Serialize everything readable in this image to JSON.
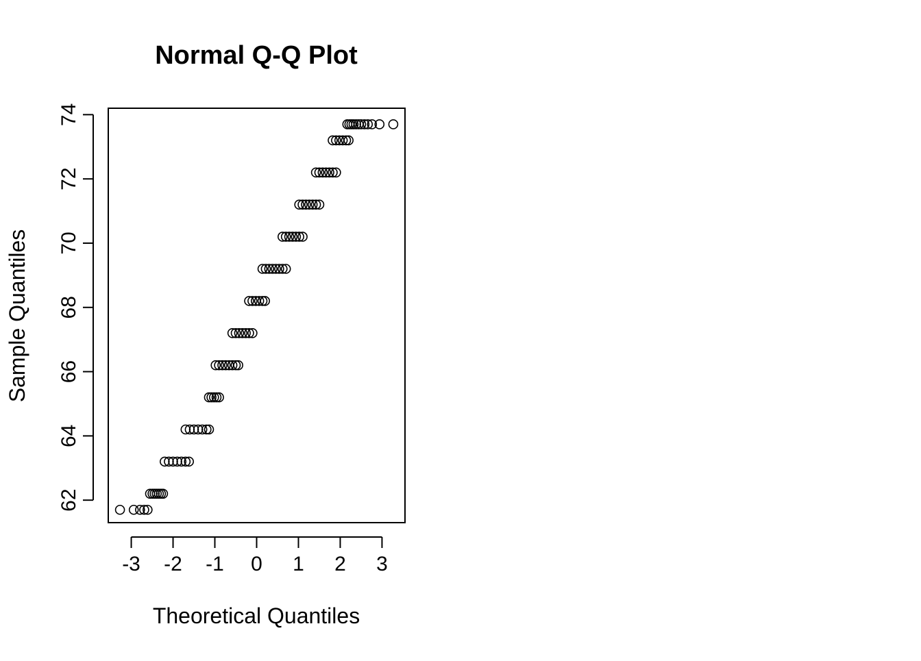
{
  "chart_data": {
    "type": "scatter",
    "title": "Normal Q-Q Plot",
    "xlabel": "Theoretical Quantiles",
    "ylabel": "Sample Quantiles",
    "xlim": [
      -3.55,
      3.55
    ],
    "ylim": [
      61.3,
      74.2
    ],
    "x_ticks": [
      -3,
      -2,
      -1,
      0,
      1,
      2,
      3
    ],
    "x_tick_labels": [
      "-3",
      "-2",
      "-1",
      "0",
      "1",
      "2",
      "3"
    ],
    "y_ticks": [
      62,
      64,
      66,
      68,
      70,
      72,
      74
    ],
    "y_tick_labels": [
      "62",
      "64",
      "66",
      "68",
      "70",
      "72",
      "74"
    ],
    "grid": false,
    "marker": "open-circle",
    "points_color": "#000000",
    "series": [
      {
        "points": [
          [
            -3.27,
            61.7
          ],
          [
            -2.94,
            61.7
          ],
          [
            -2.79,
            61.7
          ],
          [
            -2.69,
            61.7
          ],
          [
            -2.61,
            61.7
          ],
          [
            -2.55,
            62.2
          ],
          [
            -2.49,
            62.2
          ],
          [
            -2.44,
            62.2
          ],
          [
            -2.39,
            62.2
          ],
          [
            -2.34,
            62.2
          ],
          [
            -2.29,
            62.2
          ],
          [
            -2.24,
            62.2
          ],
          [
            -2.2,
            63.2
          ],
          [
            -2.1,
            63.2
          ],
          [
            -2.0,
            63.2
          ],
          [
            -1.9,
            63.2
          ],
          [
            -1.8,
            63.2
          ],
          [
            -1.7,
            63.2
          ],
          [
            -1.62,
            63.2
          ],
          [
            -1.7,
            64.2
          ],
          [
            -1.6,
            64.2
          ],
          [
            -1.5,
            64.2
          ],
          [
            -1.4,
            64.2
          ],
          [
            -1.3,
            64.2
          ],
          [
            -1.2,
            64.2
          ],
          [
            -1.14,
            64.2
          ],
          [
            -1.14,
            65.2
          ],
          [
            -1.08,
            65.2
          ],
          [
            -1.02,
            65.2
          ],
          [
            -0.96,
            65.2
          ],
          [
            -0.9,
            65.2
          ],
          [
            -0.98,
            66.2
          ],
          [
            -0.9,
            66.2
          ],
          [
            -0.82,
            66.2
          ],
          [
            -0.74,
            66.2
          ],
          [
            -0.66,
            66.2
          ],
          [
            -0.58,
            66.2
          ],
          [
            -0.5,
            66.2
          ],
          [
            -0.44,
            66.2
          ],
          [
            -0.58,
            67.2
          ],
          [
            -0.5,
            67.2
          ],
          [
            -0.42,
            67.2
          ],
          [
            -0.34,
            67.2
          ],
          [
            -0.26,
            67.2
          ],
          [
            -0.18,
            67.2
          ],
          [
            -0.1,
            67.2
          ],
          [
            -0.18,
            68.2
          ],
          [
            -0.1,
            68.2
          ],
          [
            -0.02,
            68.2
          ],
          [
            0.06,
            68.2
          ],
          [
            0.14,
            68.2
          ],
          [
            0.2,
            68.2
          ],
          [
            0.14,
            69.2
          ],
          [
            0.22,
            69.2
          ],
          [
            0.3,
            69.2
          ],
          [
            0.38,
            69.2
          ],
          [
            0.46,
            69.2
          ],
          [
            0.54,
            69.2
          ],
          [
            0.62,
            69.2
          ],
          [
            0.7,
            69.2
          ],
          [
            0.62,
            70.2
          ],
          [
            0.7,
            70.2
          ],
          [
            0.78,
            70.2
          ],
          [
            0.86,
            70.2
          ],
          [
            0.94,
            70.2
          ],
          [
            1.02,
            70.2
          ],
          [
            1.1,
            70.2
          ],
          [
            1.02,
            71.2
          ],
          [
            1.1,
            71.2
          ],
          [
            1.18,
            71.2
          ],
          [
            1.26,
            71.2
          ],
          [
            1.34,
            71.2
          ],
          [
            1.42,
            71.2
          ],
          [
            1.5,
            71.2
          ],
          [
            1.42,
            72.2
          ],
          [
            1.5,
            72.2
          ],
          [
            1.58,
            72.2
          ],
          [
            1.66,
            72.2
          ],
          [
            1.74,
            72.2
          ],
          [
            1.82,
            72.2
          ],
          [
            1.9,
            72.2
          ],
          [
            1.82,
            73.2
          ],
          [
            1.9,
            73.2
          ],
          [
            1.98,
            73.2
          ],
          [
            2.06,
            73.2
          ],
          [
            2.14,
            73.2
          ],
          [
            2.2,
            73.2
          ],
          [
            2.17,
            73.7
          ],
          [
            2.22,
            73.7
          ],
          [
            2.27,
            73.7
          ],
          [
            2.32,
            73.7
          ],
          [
            2.38,
            73.7
          ],
          [
            2.44,
            73.7
          ],
          [
            2.5,
            73.7
          ],
          [
            2.58,
            73.7
          ],
          [
            2.66,
            73.7
          ],
          [
            2.76,
            73.7
          ],
          [
            2.94,
            73.7
          ],
          [
            3.27,
            73.7
          ]
        ]
      }
    ]
  }
}
